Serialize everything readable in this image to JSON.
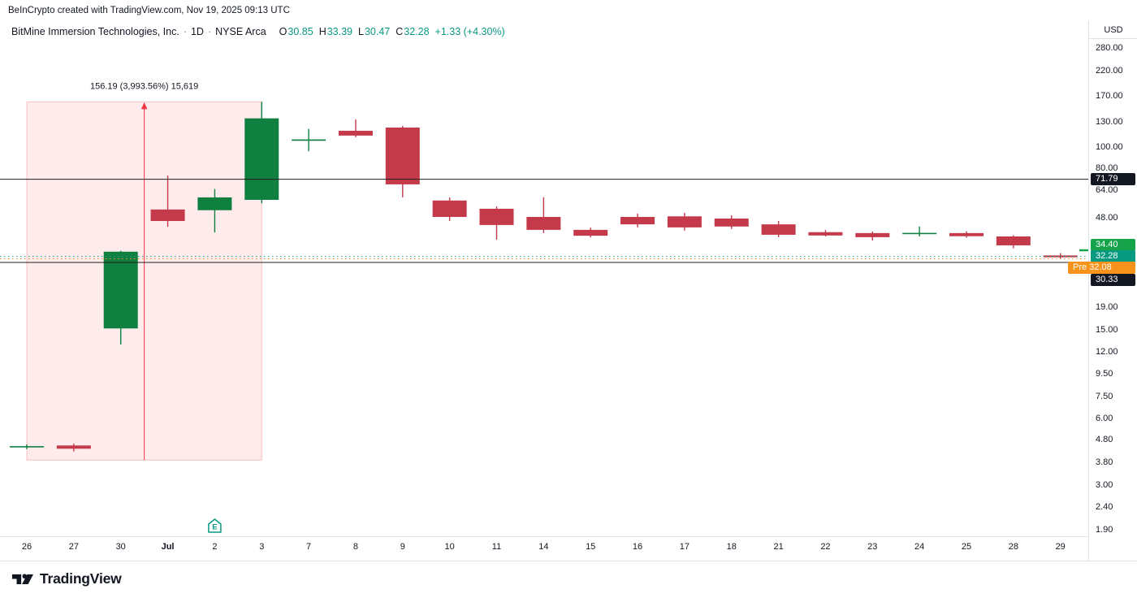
{
  "attribution": {
    "text": "BeInCrypto created with TradingView.com, Nov 19, 2025 09:13 UTC"
  },
  "legend": {
    "title": "BitMine Immersion Technologies, Inc.",
    "separator": "·",
    "interval": "1D",
    "exchange": "NYSE Arca",
    "ohlc": [
      {
        "k": "O",
        "v": "30.85"
      },
      {
        "k": "H",
        "v": "33.39"
      },
      {
        "k": "L",
        "v": "30.47"
      },
      {
        "k": "C",
        "v": "32.28"
      }
    ],
    "change": "+1.33 (+4.30%)",
    "value_color": "#089981"
  },
  "axis": {
    "currency": "USD"
  },
  "colors": {
    "up": "#0f8040",
    "down": "#c43a4a",
    "teal": "#089981",
    "pre_orange": "#f7931a",
    "black_label": "#131722",
    "measure": "#f23645"
  },
  "price_axis_labels": [
    {
      "text": "71.79",
      "value": 71.79,
      "bg": "#131722"
    },
    {
      "text": "34.40",
      "value": 34.4,
      "bg": "#16a34a"
    },
    {
      "text": "32.28",
      "value": 32.28,
      "bg": "#089981"
    },
    {
      "text": "Pre 32.08",
      "value": 32.08,
      "bg": "#f7931a",
      "wide": true
    },
    {
      "text": "30.33",
      "value": 30.33,
      "bg": "#131722"
    }
  ],
  "logo": {
    "text": "TradingView"
  },
  "chart_data": {
    "type": "candlestick",
    "scale": "log",
    "currency": "USD",
    "symbol_title": "BitMine Immersion Technologies, Inc.",
    "interval": "1D",
    "exchange": "NYSE Arca",
    "y_axis_ticks": [
      "280.00",
      "220.00",
      "170.00",
      "130.00",
      "100.00",
      "80.00",
      "64.00",
      "48.00",
      "19.00",
      "15.00",
      "12.00",
      "9.50",
      "7.50",
      "6.00",
      "4.80",
      "3.80",
      "3.00",
      "2.40",
      "1.90"
    ],
    "x_labels": [
      "26",
      "27",
      "30",
      "Jul",
      "2",
      "3",
      "7",
      "8",
      "9",
      "10",
      "11",
      "14",
      "15",
      "16",
      "17",
      "18",
      "21",
      "22",
      "23",
      "24",
      "25",
      "28",
      "29"
    ],
    "candles": [
      {
        "t": "26",
        "o": 4.5,
        "h": 4.6,
        "l": 4.38,
        "c": 4.52
      },
      {
        "t": "27",
        "o": 4.55,
        "h": 4.64,
        "l": 4.28,
        "c": 4.4
      },
      {
        "t": "30",
        "o": 15.3,
        "h": 34.2,
        "l": 12.95,
        "c": 33.9
      },
      {
        "t": "Jul",
        "o": 52.5,
        "h": 74.7,
        "l": 43.9,
        "c": 46.6
      },
      {
        "t": "2",
        "o": 52.1,
        "h": 64.9,
        "l": 41.4,
        "c": 59.5
      },
      {
        "t": "3",
        "o": 58.0,
        "h": 160.1,
        "l": 56.0,
        "c": 135.0
      },
      {
        "t": "7",
        "o": 107.0,
        "h": 121.0,
        "l": 96.0,
        "c": 108.5
      },
      {
        "t": "8",
        "o": 118.7,
        "h": 133.6,
        "l": 111.0,
        "c": 112.9
      },
      {
        "t": "9",
        "o": 122.7,
        "h": 124.8,
        "l": 59.5,
        "c": 68.1
      },
      {
        "t": "10",
        "o": 57.6,
        "h": 59.5,
        "l": 46.6,
        "c": 48.6
      },
      {
        "t": "11",
        "o": 52.9,
        "h": 54.2,
        "l": 38.4,
        "c": 44.7
      },
      {
        "t": "14",
        "o": 48.6,
        "h": 59.6,
        "l": 41.1,
        "c": 42.5
      },
      {
        "t": "15",
        "o": 42.5,
        "h": 43.5,
        "l": 39.3,
        "c": 40.0
      },
      {
        "t": "16",
        "o": 48.6,
        "h": 50.3,
        "l": 43.6,
        "c": 45.0
      },
      {
        "t": "17",
        "o": 48.9,
        "h": 50.7,
        "l": 42.2,
        "c": 43.6
      },
      {
        "t": "18",
        "o": 47.8,
        "h": 49.4,
        "l": 42.9,
        "c": 44.0
      },
      {
        "t": "21",
        "o": 45.0,
        "h": 46.6,
        "l": 39.4,
        "c": 40.4
      },
      {
        "t": "22",
        "o": 41.5,
        "h": 42.4,
        "l": 39.7,
        "c": 40.1
      },
      {
        "t": "23",
        "o": 41.1,
        "h": 41.8,
        "l": 38.1,
        "c": 39.4
      },
      {
        "t": "24",
        "o": 41.0,
        "h": 44.0,
        "l": 39.7,
        "c": 41.2
      },
      {
        "t": "25",
        "o": 41.1,
        "h": 41.9,
        "l": 39.2,
        "c": 39.8
      },
      {
        "t": "28",
        "o": 39.7,
        "h": 40.2,
        "l": 35.1,
        "c": 36.2
      },
      {
        "t": "29",
        "o": 32.6,
        "h": 33.4,
        "l": 31.4,
        "c": 32.0
      }
    ],
    "price_lines": [
      {
        "value": 71.79,
        "color": "#1d1d1d",
        "style": "solid"
      },
      {
        "value": 30.33,
        "color": "#1d1d1d",
        "style": "solid"
      },
      {
        "value": 32.28,
        "color": "#089981",
        "style": "dotted"
      },
      {
        "value": 32.08,
        "color": "#f7931a",
        "style": "dotted"
      }
    ],
    "measurement": {
      "label": "156.19 (3,993.56%) 15,619",
      "from_value": 3.91,
      "to_value": 160.1,
      "from_bar": 0,
      "to_bar": 5,
      "arrow_bar": 2.5,
      "color": "#f23645"
    },
    "earnings_marker": {
      "label": "E",
      "bar_index": 4,
      "color": "#089981"
    },
    "edge_marker": {
      "value": 34.4,
      "color": "#16a34a"
    }
  }
}
